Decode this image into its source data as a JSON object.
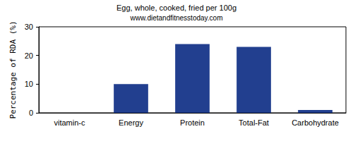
{
  "chart_data": {
    "type": "bar",
    "title": "Egg, whole, cooked, fried per 100g",
    "subtitle": "www.dietandfitnesstoday.com",
    "y_label": "Percentage of RDA (%)",
    "categories": [
      "vitamin-c",
      "Energy",
      "Protein",
      "Total-Fat",
      "Carbohydrate"
    ],
    "values": [
      0,
      10,
      24,
      23,
      1
    ],
    "color": "#223f8f",
    "ylim": [
      0,
      30
    ],
    "yticks": [
      0,
      10,
      20,
      30
    ],
    "grid": false
  }
}
